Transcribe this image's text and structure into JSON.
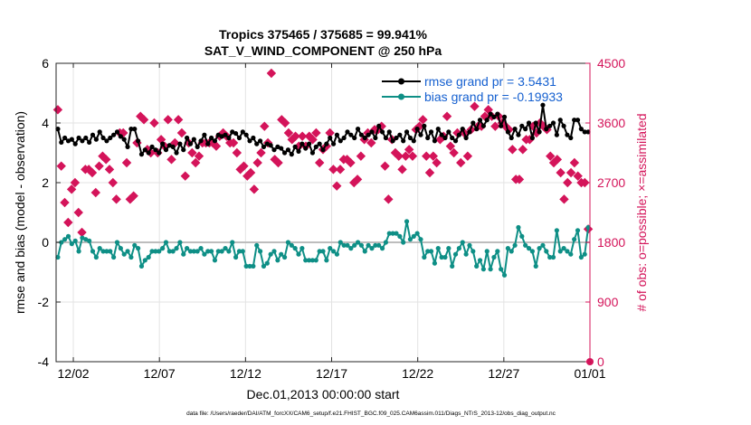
{
  "chart_data": {
    "type": "line",
    "title": "Tropics 375465 / 375685 = 99.941%",
    "subtitle": "SAT_V_WIND_COMPONENT @ 250 hPa",
    "xlabel": "Dec.01,2013 00:00:00 start",
    "ylabel": "rmse and bias (model - observation)",
    "y2label": "# of obs: o=possible; ×=assimilated",
    "footer": "data file: /Users/raeder/DAI/ATM_forcXX/CAM6_setup/f.e21.FHIST_BGC.f09_025.CAM6assim.011/Diags_NTrS_2013-12/obs_diag_output.nc",
    "x_ticks": [
      "12/02",
      "12/07",
      "12/12",
      "12/17",
      "12/22",
      "12/27",
      "01/01"
    ],
    "x_tick_days": [
      1,
      6,
      11,
      16,
      21,
      26,
      31
    ],
    "xlim": [
      0,
      31
    ],
    "ylim": [
      -4,
      6
    ],
    "y_ticks": [
      "-4",
      "-2",
      "0",
      "2",
      "4",
      "6"
    ],
    "y2lim": [
      0,
      4500
    ],
    "y2_ticks": [
      "0",
      "900",
      "1800",
      "2700",
      "3600",
      "4500"
    ],
    "grid": true,
    "legend_position": "top-right",
    "colors": {
      "rmse": "#000000",
      "bias": "#0e8f86",
      "obs": "#d4145a",
      "zero_line": "#bdbdbd"
    },
    "series": [
      {
        "name": "rmse grand pr = 3.5431",
        "values": [
          3.8,
          3.35,
          3.5,
          3.4,
          3.45,
          3.3,
          3.5,
          3.4,
          3.5,
          3.35,
          3.6,
          3.45,
          3.7,
          3.5,
          3.4,
          3.5,
          3.6,
          3.7,
          3.55,
          3.45,
          3.2,
          3.8,
          3.8,
          3.4,
          2.95,
          3.1,
          3.0,
          3.2,
          3.1,
          3.0,
          3.3,
          3.1,
          3.25,
          3.2,
          3.0,
          3.3,
          3.1,
          3.5,
          3.3,
          3.45,
          3.2,
          3.4,
          3.6,
          3.3,
          3.5,
          3.4,
          3.6,
          3.55,
          3.6,
          3.5,
          3.7,
          3.65,
          3.5,
          3.7,
          3.6,
          3.4,
          3.5,
          3.3,
          3.4,
          3.2,
          3.3,
          3.25,
          3.1,
          3.2,
          3.15,
          3.0,
          3.1,
          2.95,
          3.2,
          3.05,
          3.3,
          3.15,
          3.3,
          3.0,
          3.2,
          3.3,
          3.1,
          3.3,
          3.5,
          3.3,
          3.6,
          3.4,
          3.5,
          3.7,
          3.6,
          3.5,
          3.8,
          3.6,
          3.5,
          3.6,
          3.7,
          3.5,
          3.9,
          3.7,
          3.5,
          3.7,
          3.4,
          3.5,
          3.6,
          3.4,
          3.7,
          3.5,
          3.4,
          3.8,
          3.6,
          3.9,
          3.5,
          3.7,
          3.4,
          3.8,
          3.6,
          3.5,
          3.7,
          3.5,
          3.4,
          3.6,
          3.8,
          3.5,
          3.7,
          4.0,
          3.8,
          4.1,
          3.9,
          4.1,
          4.3,
          4.2,
          4.3,
          3.9,
          4.2,
          3.7,
          3.5,
          3.8,
          3.6,
          3.9,
          3.8,
          4.0,
          3.5,
          4.0,
          3.7,
          4.6,
          3.8,
          3.9,
          4.0,
          3.6,
          4.1,
          3.9,
          3.6,
          3.5,
          4.1,
          4.1,
          3.8,
          3.7,
          3.7
        ],
        "color": "#000000"
      },
      {
        "name": "bias grand pr = -0.19933",
        "values": [
          -0.5,
          0.0,
          0.1,
          0.2,
          -0.05,
          0.05,
          -0.3,
          0.15,
          0.1,
          0.05,
          -0.3,
          -0.5,
          -0.2,
          -0.3,
          -0.3,
          -0.3,
          -0.5,
          0.0,
          -0.2,
          -0.4,
          -0.3,
          -0.5,
          -0.1,
          -0.2,
          -0.8,
          -0.6,
          -0.5,
          -0.3,
          -0.3,
          -0.3,
          -0.2,
          0.0,
          -0.3,
          -0.3,
          -0.2,
          0.0,
          -0.4,
          -0.2,
          -0.3,
          -0.3,
          -0.3,
          -0.2,
          -0.4,
          -0.3,
          -0.3,
          -0.6,
          -0.3,
          -0.3,
          -0.2,
          -0.3,
          0.0,
          -0.5,
          -0.3,
          -0.3,
          -0.8,
          -0.8,
          -0.8,
          -0.1,
          -0.3,
          -0.8,
          -0.7,
          -0.4,
          -0.3,
          -0.6,
          -0.4,
          -0.5,
          0.0,
          -0.1,
          -0.2,
          -0.4,
          -0.2,
          -0.6,
          -0.6,
          -0.6,
          -0.6,
          -0.3,
          -0.3,
          -0.6,
          -0.2,
          -0.3,
          -0.4,
          0.0,
          -0.1,
          -0.1,
          -0.2,
          -0.1,
          0.0,
          -0.1,
          -0.3,
          -0.1,
          -0.2,
          -0.1,
          -0.1,
          -0.2,
          0.0,
          0.3,
          0.3,
          0.3,
          0.2,
          0.0,
          0.7,
          0.1,
          0.2,
          0.3,
          0.1,
          -0.5,
          -0.3,
          -0.3,
          -0.7,
          -0.2,
          -0.5,
          -0.5,
          -0.2,
          -0.8,
          -0.4,
          -0.2,
          0.0,
          -0.4,
          -0.1,
          -0.3,
          -0.8,
          -0.6,
          -0.9,
          -0.3,
          -0.9,
          -0.5,
          -0.3,
          -0.9,
          -1.1,
          -0.2,
          -0.3,
          -0.1,
          0.5,
          0.2,
          -0.1,
          -0.2,
          -0.3,
          -0.8,
          -0.2,
          -0.1,
          -0.3,
          -0.5,
          -0.5,
          0.4,
          -0.3,
          -0.2,
          -0.3,
          -0.4,
          0.1,
          0.4,
          -0.5,
          -0.4,
          0.5
        ],
        "color": "#0e8f86"
      },
      {
        "name": "obs assimilated",
        "values": [
          3800,
          2950,
          2400,
          2100,
          2600,
          2700,
          2250,
          1950,
          2900,
          2900,
          2850,
          2550,
          2950,
          3100,
          3050,
          2900,
          2700,
          2450,
          3450,
          3450,
          3000,
          2450,
          2500,
          3300,
          3700,
          3650,
          3200,
          3150,
          3600,
          3150,
          3350,
          3250,
          3650,
          3050,
          3300,
          3650,
          3450,
          2800,
          3300,
          3150,
          3000,
          3100,
          3300,
          3300,
          3300,
          3300,
          3250,
          3400,
          3450,
          3400,
          3300,
          3300,
          3150,
          2900,
          2950,
          2800,
          2850,
          2600,
          3000,
          3150,
          3550,
          3300,
          4350,
          3050,
          3000,
          3650,
          3600,
          3450,
          3350,
          3400,
          3250,
          3400,
          3250,
          3400,
          3350,
          3450,
          3000,
          3200,
          3250,
          3450,
          2900,
          2650,
          2900,
          3050,
          3050,
          3000,
          2700,
          2750,
          3100,
          3350,
          3450,
          3300,
          3500,
          3500,
          3550,
          2950,
          2450,
          3350,
          3150,
          3100,
          2900,
          3100,
          3200,
          3100,
          3500,
          3550,
          3650,
          3100,
          2850,
          3100,
          3000,
          3350,
          3400,
          3700,
          3250,
          3150,
          3450,
          3000,
          3450,
          3100,
          3500,
          3850,
          3550,
          3550,
          3700,
          3800,
          3700,
          3550,
          3700,
          3600,
          3550,
          3500,
          3200,
          2750,
          2750,
          3200,
          3350,
          3350,
          3550,
          3450,
          3600,
          3550,
          3500,
          3100,
          3000,
          3050,
          2850,
          2450,
          2700,
          2850,
          3000,
          2800,
          2700,
          2700,
          2000
        ],
        "color": "#d4145a"
      }
    ]
  }
}
